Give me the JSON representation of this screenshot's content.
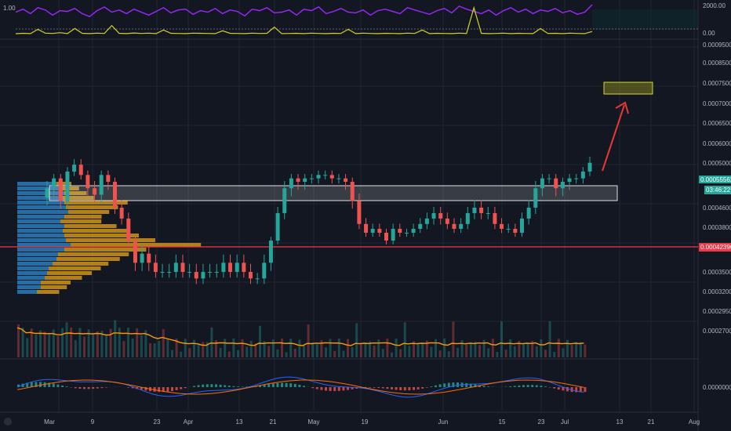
{
  "chart_data": [
    {
      "type": "line",
      "pane": "oscillator",
      "left_label": "1.00",
      "ticks": [
        "2000.00",
        "0.00"
      ],
      "series": [
        {
          "color": "#9c27ff",
          "values": [
            1500,
            1700,
            1400,
            1800,
            1650,
            1300,
            1600,
            1550,
            1750,
            1400,
            1200,
            1600,
            1850,
            1500,
            1650,
            1400,
            1700,
            1500,
            1300,
            1550,
            1800,
            1450,
            1650,
            1700,
            1350,
            1600,
            1500,
            1750,
            1400,
            1650,
            1550,
            1250,
            1700,
            1600,
            1800,
            1450,
            1500,
            1650,
            1300,
            1700,
            1600,
            1850,
            1400,
            1550,
            1750,
            1500,
            1450,
            1650,
            1300,
            1600,
            1700,
            1550,
            1400,
            1800,
            1650,
            1500,
            1350,
            1600,
            1750,
            1450,
            1900,
            1700,
            1550,
            1400,
            1650,
            1300,
            1600,
            1800,
            1500,
            1700,
            1400,
            1650,
            1550,
            1750,
            1450,
            1600,
            1350,
            1500,
            2000
          ]
        },
        {
          "color": "#d4d024",
          "values": [
            50,
            80,
            60,
            350,
            90,
            70,
            120,
            60,
            400,
            80,
            60,
            90,
            70,
            600,
            80,
            60,
            100,
            70,
            90,
            60,
            300,
            80,
            70,
            60,
            90,
            80,
            70,
            60,
            250,
            80,
            70,
            60,
            90,
            70,
            80,
            500,
            60,
            70,
            80,
            60,
            90,
            70,
            60,
            80,
            70,
            350,
            60,
            90,
            70,
            60,
            80,
            70,
            60,
            90,
            70,
            300,
            60,
            80,
            70,
            60,
            90,
            70,
            1800,
            80,
            60,
            70,
            90,
            60,
            80,
            70,
            60,
            400,
            70,
            80,
            60,
            90,
            70,
            60,
            200
          ]
        }
      ]
    },
    {
      "type": "candlestick",
      "pane": "price",
      "x_tick_labels": [
        "Mar",
        "9",
        "23",
        "Apr",
        "13",
        "21",
        "May",
        "19",
        "Jun",
        "15",
        "23",
        "Jul",
        "13",
        "21",
        "Aug"
      ],
      "y_tick_labels": [
        "0.00095000",
        "0.00085000",
        "0.00075000",
        "0.00070000",
        "0.00065000",
        "0.00060000",
        "0.00050000",
        "0.00046000",
        "0.00038000",
        "0.00035000",
        "0.00032000",
        "0.00029500",
        "0.00027000"
      ],
      "last_price_label": "0.00055562",
      "countdown_label": "03:46:22",
      "horizontal_line_label": "0.00042396",
      "horizontal_line_color": "#f23645",
      "up_color": "#26a69a",
      "down_color": "#ef5350",
      "close_values": [
        0.00049,
        0.00051,
        0.00047,
        0.00053,
        0.00055,
        0.00052,
        0.00049,
        0.00048,
        0.00052,
        0.0005,
        0.00046,
        0.00044,
        0.00039,
        0.00036,
        0.00037,
        0.00036,
        0.00035,
        0.00035,
        0.00035,
        0.00036,
        0.00035,
        0.00035,
        0.00034,
        0.00035,
        0.00035,
        0.00035,
        0.00036,
        0.00035,
        0.00036,
        0.00035,
        0.00034,
        0.00034,
        0.00036,
        0.00039,
        0.00045,
        0.00049,
        0.00051,
        0.0005,
        0.00051,
        0.00051,
        0.00052,
        0.00052,
        0.00051,
        0.00051,
        0.0005,
        0.00047,
        0.00043,
        0.00041,
        0.00042,
        0.00041,
        0.00039,
        0.00042,
        0.00041,
        0.00041,
        0.00042,
        0.00043,
        0.00044,
        0.00045,
        0.00044,
        0.00043,
        0.00042,
        0.00043,
        0.00045,
        0.00046,
        0.00045,
        0.00045,
        0.00043,
        0.00042,
        0.00042,
        0.00041,
        0.00044,
        0.00046,
        0.00049,
        0.00051,
        0.00051,
        0.00049,
        0.0005,
        0.00051,
        0.00051,
        0.00053,
        0.00055562
      ],
      "indicator_colors": {
        "ma": "#ff9800",
        "macd": "#2962ff",
        "signal": "#ff6d00"
      }
    }
  ]
}
